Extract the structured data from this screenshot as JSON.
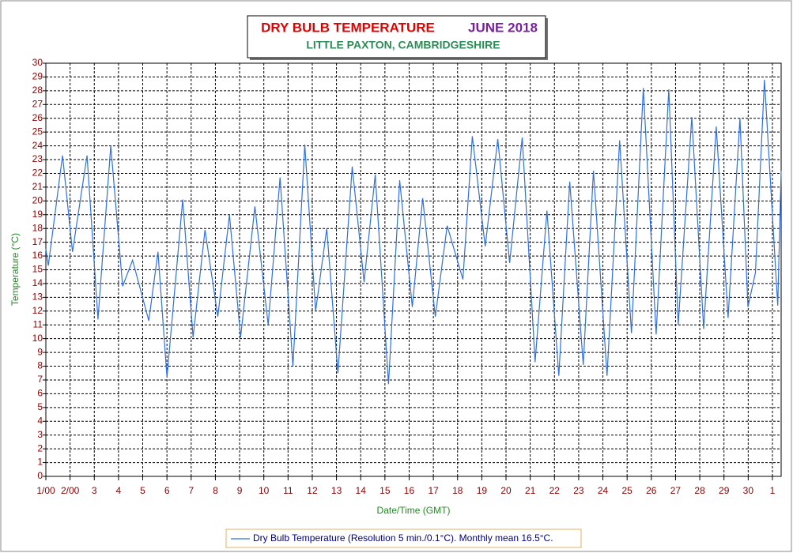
{
  "chart_data": {
    "type": "line",
    "title": "DRY BULB TEMPERATURE",
    "title_period": "JUNE 2018",
    "subtitle": "LITTLE PAXTON, CAMBRIDGESHIRE",
    "y_label": "Temperature (°C)",
    "x_label": "Date/Time (GMT)",
    "grid": true,
    "legend": "bottom",
    "xlim": [
      1,
      31.36
    ],
    "ylim": [
      0,
      30
    ],
    "yticks": [
      0,
      1,
      2,
      3,
      4,
      5,
      6,
      7,
      8,
      9,
      10,
      11,
      12,
      13,
      14,
      15,
      16,
      17,
      18,
      19,
      20,
      21,
      22,
      23,
      24,
      25,
      26,
      27,
      28,
      29,
      30
    ],
    "xticks": [
      {
        "value": 1,
        "label": "1/00"
      },
      {
        "value": 2,
        "label": "2/00"
      },
      3,
      4,
      5,
      6,
      7,
      8,
      9,
      10,
      11,
      12,
      13,
      14,
      15,
      16,
      17,
      18,
      19,
      20,
      21,
      22,
      23,
      24,
      25,
      26,
      27,
      28,
      29,
      30,
      {
        "value": 31,
        "label": "1"
      }
    ],
    "series": [
      {
        "name": "Dry Bulb Temperature (Resolution 5 min./0.1°C). Monthly mean 16.5°C.",
        "color": "#2f6fe8",
        "x": [
          1.0,
          1.1,
          1.69,
          2.1,
          2.7,
          3.15,
          3.68,
          4.17,
          4.58,
          5.25,
          5.63,
          6.0,
          6.65,
          7.08,
          7.57,
          8.1,
          8.58,
          9.04,
          9.63,
          10.18,
          10.67,
          11.2,
          11.69,
          12.14,
          12.6,
          13.06,
          13.65,
          14.14,
          14.6,
          15.15,
          15.61,
          16.13,
          16.56,
          17.08,
          17.57,
          18.22,
          18.61,
          19.14,
          19.66,
          20.15,
          20.67,
          21.2,
          21.69,
          22.18,
          22.63,
          23.19,
          23.61,
          24.17,
          24.69,
          25.18,
          25.67,
          26.2,
          26.72,
          27.11,
          27.67,
          28.16,
          28.68,
          29.17,
          29.66,
          29.99,
          30.3,
          30.67,
          31.22,
          31.36
        ],
        "values": [
          16.5,
          15.3,
          23.3,
          16.3,
          23.3,
          11.4,
          24.0,
          13.8,
          15.7,
          11.3,
          16.3,
          7.2,
          20.1,
          10.1,
          17.9,
          11.6,
          19.0,
          10.1,
          19.6,
          11.0,
          21.7,
          8.0,
          24.1,
          12.0,
          18.0,
          7.5,
          22.5,
          14.1,
          21.9,
          6.7,
          21.5,
          12.3,
          20.2,
          11.6,
          18.2,
          14.3,
          24.7,
          16.7,
          24.5,
          15.5,
          24.6,
          8.3,
          19.3,
          7.3,
          21.4,
          8.1,
          22.2,
          7.3,
          24.4,
          10.4,
          28.2,
          10.3,
          28.1,
          11.0,
          26.1,
          10.7,
          25.4,
          11.5,
          26.0,
          12.3,
          14.8,
          28.8,
          12.4,
          22.2
        ]
      }
    ]
  }
}
